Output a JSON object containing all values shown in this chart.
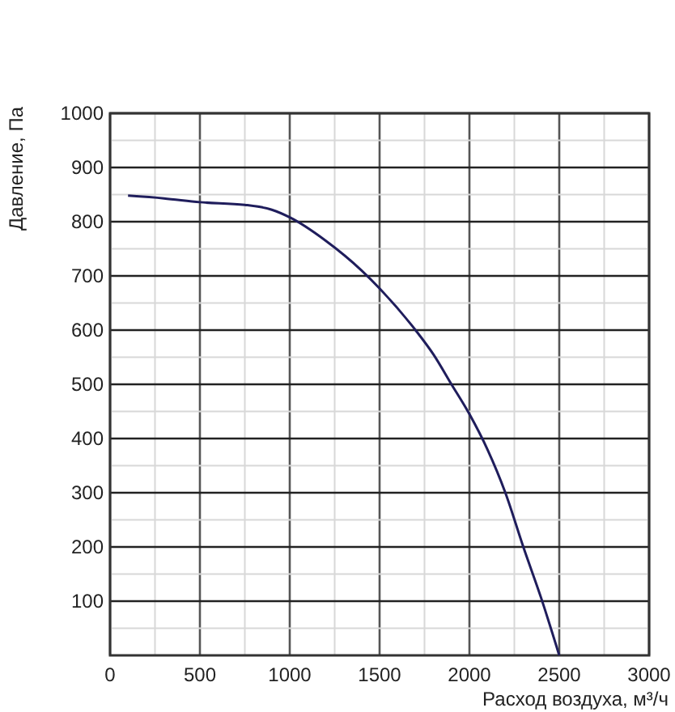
{
  "chart_data": {
    "type": "line",
    "xlabel": "Расход воздуха, м³/ч",
    "ylabel": "Давление, Па",
    "xlim": [
      0,
      3000
    ],
    "ylim": [
      0,
      1000
    ],
    "xticks": [
      0,
      {
        "value": 250,
        "label": null
      },
      500,
      {
        "value": 750,
        "label": null
      },
      1000,
      {
        "value": 1250,
        "label": null
      },
      1500,
      {
        "value": 1750,
        "label": null
      },
      2000,
      {
        "value": 2250,
        "label": null
      },
      2500,
      {
        "value": 2750,
        "label": null
      },
      3000
    ],
    "yticks": [
      {
        "value": 0,
        "label": null
      },
      {
        "value": 50,
        "label": null
      },
      100,
      {
        "value": 150,
        "label": null
      },
      200,
      {
        "value": 250,
        "label": null
      },
      300,
      {
        "value": 350,
        "label": null
      },
      400,
      {
        "value": 450,
        "label": null
      },
      500,
      {
        "value": 550,
        "label": null
      },
      600,
      {
        "value": 650,
        "label": null
      },
      700,
      {
        "value": 750,
        "label": null
      },
      800,
      {
        "value": 850,
        "label": null
      },
      900,
      {
        "value": 950,
        "label": null
      },
      1000
    ],
    "grid": true,
    "marker": "none",
    "line_style": "solid",
    "series": [
      {
        "color": "#1f1d5c",
        "x": [
          100,
          300,
          500,
          750,
          900,
          1000,
          1200,
          1400,
          1500,
          1700,
          1800,
          1900,
          2000,
          2100,
          2200,
          2300,
          2400,
          2500
        ],
        "values": [
          848,
          843,
          836,
          831,
          822,
          808,
          765,
          710,
          677,
          600,
          555,
          500,
          445,
          380,
          300,
          200,
          105,
          0
        ]
      }
    ]
  }
}
